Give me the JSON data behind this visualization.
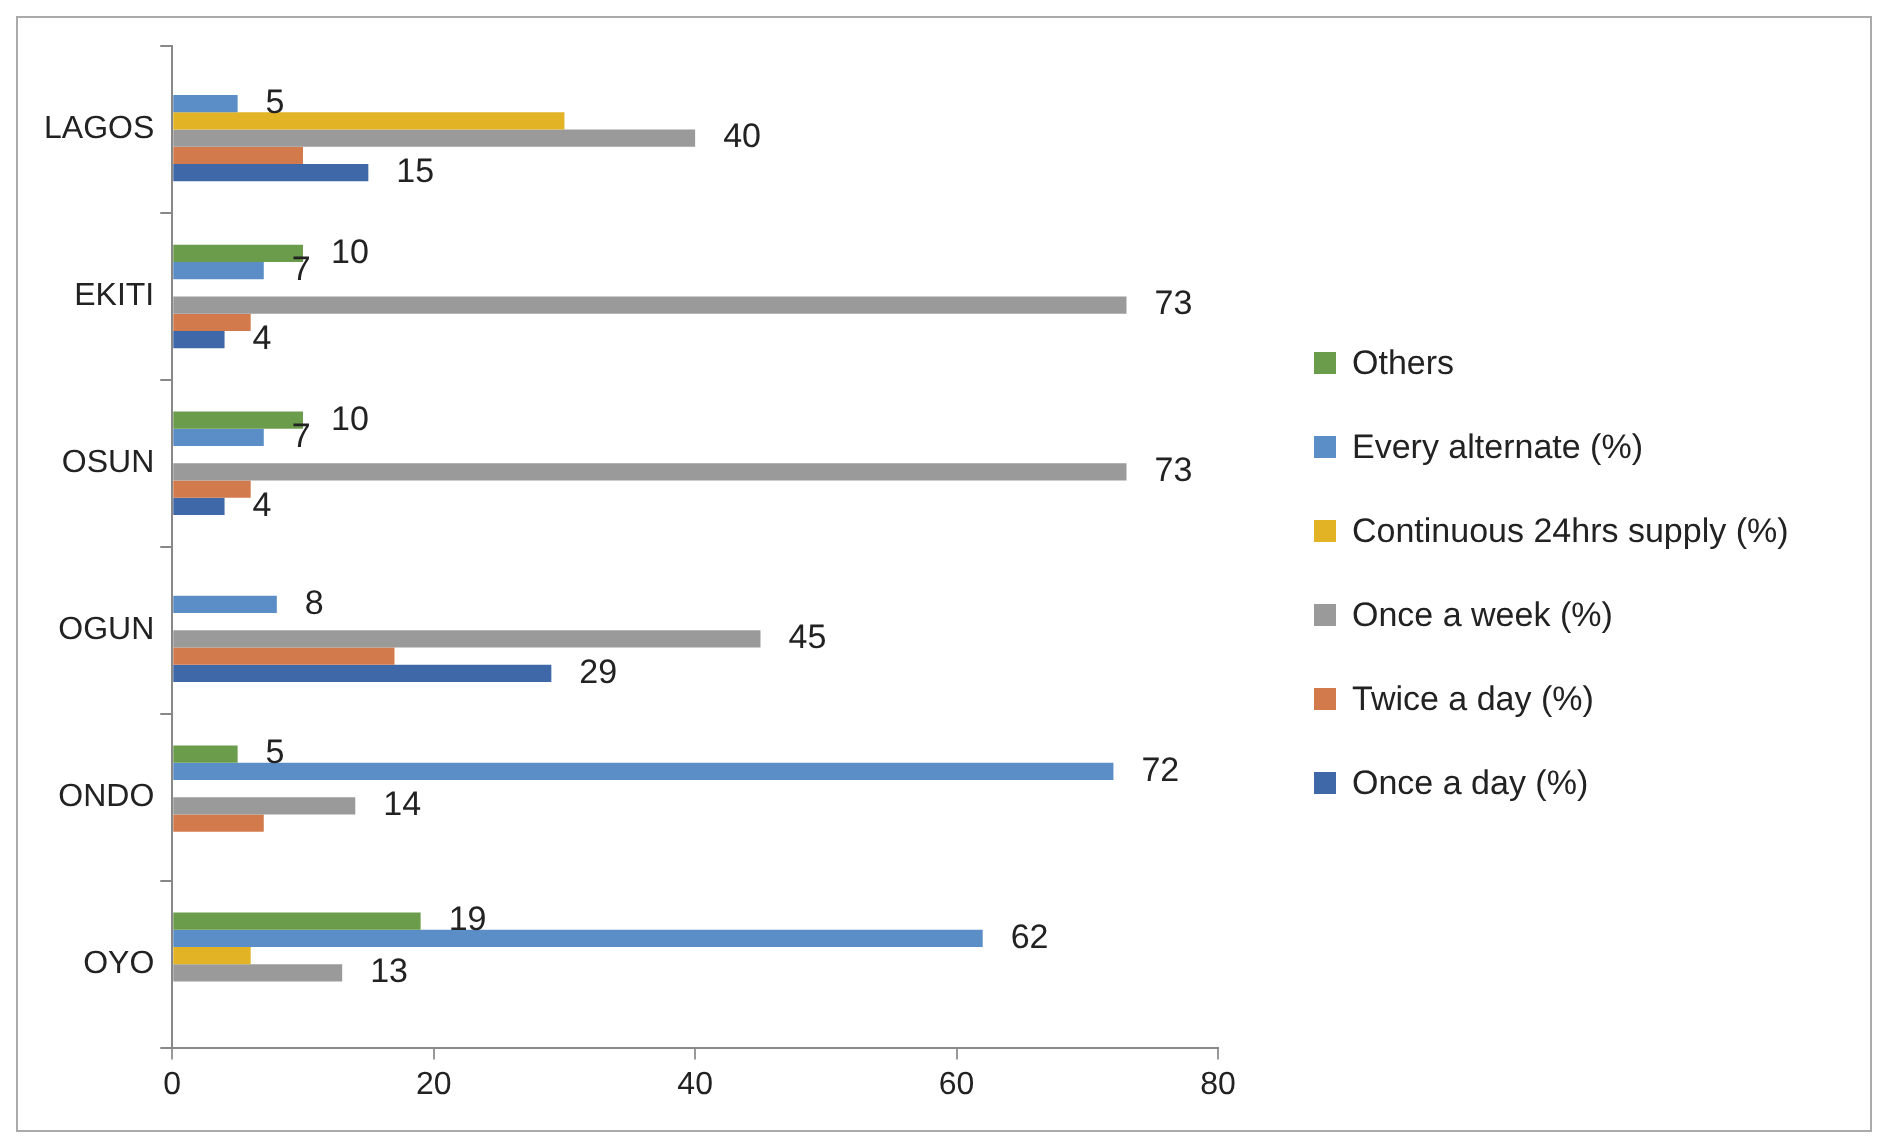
{
  "chart_data": {
    "type": "bar",
    "orientation": "horizontal",
    "categories": [
      "LAGOS",
      "EKITI",
      "OSUN",
      "OGUN",
      "ONDO",
      "OYO"
    ],
    "xlim": [
      0,
      80
    ],
    "xticks": [
      0,
      20,
      40,
      60,
      80
    ],
    "grid": false,
    "legend": "right",
    "series": [
      {
        "name": "Others",
        "color": "#6b9c4b",
        "values": [
          null,
          10,
          10,
          null,
          5,
          19
        ],
        "value_labels": [
          null,
          "10",
          "10",
          null,
          "5",
          "19"
        ]
      },
      {
        "name": "Every alternate (%)",
        "color": "#5b8ec6",
        "values": [
          5,
          7,
          7,
          8,
          72,
          62
        ],
        "value_labels": [
          "5",
          "7",
          "7",
          "8",
          "72",
          "62"
        ]
      },
      {
        "name": "Continuous 24hrs supply (%)",
        "color": "#e2b325",
        "values": [
          30,
          null,
          null,
          null,
          null,
          6
        ],
        "value_labels": [
          null,
          null,
          null,
          null,
          null,
          null
        ]
      },
      {
        "name": "Once a week (%)",
        "color": "#9a9a9a",
        "values": [
          40,
          73,
          73,
          45,
          14,
          13
        ],
        "value_labels": [
          "40",
          "73",
          "73",
          "45",
          "14",
          "13"
        ]
      },
      {
        "name": "Twice a day (%)",
        "color": "#d27a4c",
        "values": [
          10,
          6,
          6,
          17,
          7,
          null
        ],
        "value_labels": [
          null,
          null,
          null,
          null,
          null,
          null
        ]
      },
      {
        "name": "Once a day (%)",
        "color": "#3f68a9",
        "values": [
          15,
          4,
          4,
          29,
          null,
          null
        ],
        "value_labels": [
          "15",
          "4",
          "4",
          "29",
          null,
          null
        ]
      }
    ]
  }
}
